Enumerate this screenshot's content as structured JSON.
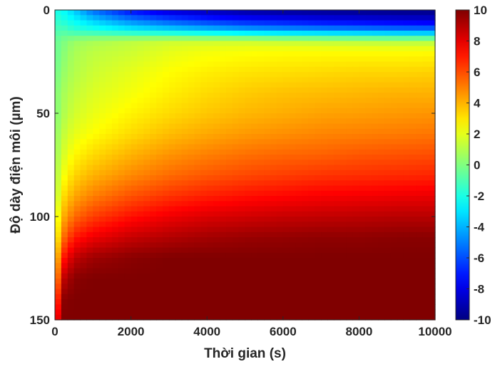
{
  "chart_data": {
    "type": "heatmap",
    "title": "",
    "xlabel": "Thời gian (s)",
    "ylabel": "Độ dày điện môi (µm)",
    "xlim": [
      0,
      10000
    ],
    "ylim": [
      0,
      150
    ],
    "y_reversed": true,
    "x_ticks": [
      "0",
      "2000",
      "4000",
      "6000",
      "8000",
      "10000"
    ],
    "y_ticks": [
      "0",
      "50",
      "100",
      "150"
    ],
    "colorbar": {
      "colormap": "jet",
      "clim": [
        -10,
        10
      ],
      "ticks": [
        "10",
        "8",
        "6",
        "4",
        "2",
        "0",
        "-2",
        "-4",
        "-6",
        "-8",
        "-10"
      ]
    },
    "x_grid": [
      0,
      250,
      500,
      1000,
      2000,
      3000,
      4000,
      5000,
      6000,
      7000,
      8000,
      9000,
      10000
    ],
    "y_grid": [
      0,
      5,
      10,
      15,
      20,
      30,
      40,
      50,
      60,
      70,
      80,
      90,
      100,
      110,
      120,
      130,
      140,
      150
    ],
    "z": [
      [
        -2,
        -2.5,
        -3.5,
        -5.5,
        -7.5,
        -8.5,
        -9,
        -9.5,
        -9.7,
        -9.8,
        -9.9,
        -10,
        -10
      ],
      [
        -1.5,
        -2,
        -2.5,
        -3.5,
        -5,
        -6,
        -6.7,
        -7.2,
        -7.5,
        -7.8,
        -8,
        -8.2,
        -8.4
      ],
      [
        -1,
        -1,
        -1.5,
        -1.8,
        -2.5,
        -3,
        -3.5,
        -4,
        -4.3,
        -4.5,
        -4.7,
        -4.9,
        -5
      ],
      [
        -0.5,
        0,
        0.5,
        0.8,
        1.2,
        1.5,
        1.5,
        1.5,
        1.3,
        1.2,
        1.1,
        1,
        1
      ],
      [
        -0.5,
        0.2,
        0.8,
        1.2,
        1.5,
        2,
        2.3,
        2.4,
        2.5,
        2.5,
        2.5,
        2.5,
        2.5
      ],
      [
        -0.3,
        0.5,
        1,
        1.5,
        2,
        2.5,
        2.8,
        3,
        3.1,
        3.2,
        3.3,
        3.3,
        3.4
      ],
      [
        0,
        0.8,
        1.3,
        1.8,
        2.3,
        2.8,
        3.2,
        3.5,
        3.7,
        3.8,
        3.9,
        4,
        4
      ],
      [
        0,
        1,
        1.6,
        2.1,
        2.7,
        3.2,
        3.6,
        3.9,
        4.1,
        4.3,
        4.4,
        4.5,
        4.6
      ],
      [
        0.3,
        1.4,
        2,
        2.5,
        3.2,
        3.8,
        4.2,
        4.5,
        4.7,
        4.9,
        5,
        5.1,
        5.2
      ],
      [
        0.5,
        1.8,
        2.6,
        3.2,
        4,
        4.6,
        5,
        5.3,
        5.5,
        5.6,
        5.8,
        5.9,
        6
      ],
      [
        0.8,
        2.4,
        3.3,
        4,
        4.8,
        5.4,
        5.8,
        6.1,
        6.3,
        6.5,
        6.6,
        6.7,
        6.8
      ],
      [
        1,
        3.2,
        4.2,
        5,
        5.9,
        6.5,
        6.9,
        7.2,
        7.4,
        7.6,
        7.7,
        7.8,
        7.9
      ],
      [
        1.5,
        4.2,
        5.4,
        6.3,
        7.2,
        7.8,
        8.2,
        8.4,
        8.6,
        8.7,
        8.8,
        8.9,
        8.9
      ],
      [
        2,
        5.5,
        7,
        7.8,
        8.6,
        9,
        9.3,
        9.5,
        9.6,
        9.7,
        9.7,
        9.8,
        9.8
      ],
      [
        3,
        7.2,
        8.7,
        9.4,
        9.8,
        10,
        10,
        10,
        10,
        10,
        10,
        10,
        10
      ],
      [
        4,
        8.8,
        9.8,
        10,
        10,
        10,
        10,
        10,
        10,
        10,
        10,
        10,
        10
      ],
      [
        5.5,
        9.8,
        10,
        10,
        10,
        10,
        10,
        10,
        10,
        10,
        10,
        10,
        10
      ],
      [
        7,
        10,
        10,
        10,
        10,
        10,
        10,
        10,
        10,
        10,
        10,
        10,
        10
      ]
    ]
  }
}
